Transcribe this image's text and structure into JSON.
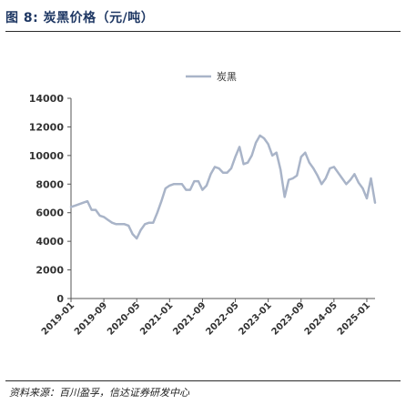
{
  "header": {
    "figure_title": "图 8: 炭黑价格（元/吨）"
  },
  "footer": {
    "source": "资料来源：百川盈孚，信达证券研发中心"
  },
  "chart_data": {
    "type": "line",
    "title": "",
    "xlabel": "",
    "ylabel": "",
    "ylim": [
      0,
      14000
    ],
    "yticks": [
      0,
      2000,
      4000,
      6000,
      8000,
      10000,
      12000,
      14000
    ],
    "yticklabels": [
      "0",
      "2000",
      "4000",
      "6000",
      "8000",
      "10000",
      "12000",
      "14000"
    ],
    "xticklabels": [
      "2019-01",
      "2019-09",
      "2020-05",
      "2021-01",
      "2021-09",
      "2022-05",
      "2023-01",
      "2023-09",
      "2024-05",
      "2025-01"
    ],
    "xlim": [
      "2019-01",
      "2025-03"
    ],
    "grid": false,
    "legend_position": "top-center",
    "colors": {
      "series": "#a9b4c8"
    },
    "series": [
      {
        "name": "炭黑",
        "x": [
          "2019-01",
          "2019-02",
          "2019-03",
          "2019-04",
          "2019-05",
          "2019-06",
          "2019-07",
          "2019-08",
          "2019-09",
          "2019-10",
          "2019-11",
          "2019-12",
          "2020-01",
          "2020-02",
          "2020-03",
          "2020-04",
          "2020-05",
          "2020-06",
          "2020-07",
          "2020-08",
          "2020-09",
          "2020-10",
          "2020-11",
          "2020-12",
          "2021-01",
          "2021-02",
          "2021-03",
          "2021-04",
          "2021-05",
          "2021-06",
          "2021-07",
          "2021-08",
          "2021-09",
          "2021-10",
          "2021-11",
          "2021-12",
          "2022-01",
          "2022-02",
          "2022-03",
          "2022-04",
          "2022-05",
          "2022-06",
          "2022-07",
          "2022-08",
          "2022-09",
          "2022-10",
          "2022-11",
          "2022-12",
          "2023-01",
          "2023-02",
          "2023-03",
          "2023-04",
          "2023-05",
          "2023-06",
          "2023-07",
          "2023-08",
          "2023-09",
          "2023-10",
          "2023-11",
          "2023-12",
          "2024-01",
          "2024-02",
          "2024-03",
          "2024-04",
          "2024-05",
          "2024-06",
          "2024-07",
          "2024-08",
          "2024-09",
          "2024-10",
          "2024-11",
          "2024-12",
          "2025-01",
          "2025-02",
          "2025-03"
        ],
        "values": [
          6400,
          6500,
          6600,
          6700,
          6800,
          6200,
          6200,
          5800,
          5700,
          5500,
          5300,
          5200,
          5200,
          5200,
          5100,
          4500,
          4200,
          4800,
          5200,
          5300,
          5300,
          6000,
          6800,
          7700,
          7900,
          8000,
          8000,
          8000,
          7600,
          7600,
          8200,
          8200,
          7600,
          7900,
          8700,
          9200,
          9100,
          8800,
          8800,
          9100,
          9900,
          10600,
          9400,
          9500,
          10000,
          10900,
          11400,
          11200,
          10800,
          10000,
          10200,
          9000,
          7100,
          8300,
          8400,
          8600,
          9900,
          10200,
          9500,
          9100,
          8600,
          8000,
          8400,
          9100,
          9200,
          8800,
          8400,
          8000,
          8300,
          8700,
          8100,
          7700,
          7000,
          8400,
          6700
        ]
      }
    ]
  }
}
